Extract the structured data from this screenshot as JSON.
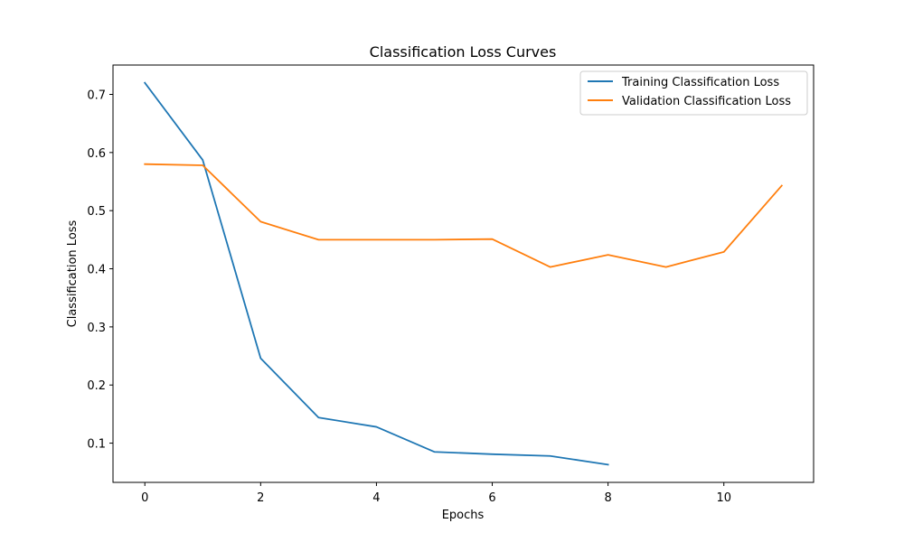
{
  "chart_data": {
    "type": "line",
    "title": "Classification Loss Curves",
    "xlabel": "Epochs",
    "ylabel": "Classification Loss",
    "xlim": [
      -0.55,
      11.55
    ],
    "ylim": [
      0.0325,
      0.7505
    ],
    "x_ticks": [
      0,
      2,
      4,
      6,
      8,
      10
    ],
    "x_tick_labels": [
      "0",
      "2",
      "4",
      "6",
      "8",
      "10"
    ],
    "y_ticks": [
      0.1,
      0.2,
      0.3,
      0.4,
      0.5,
      0.6,
      0.7
    ],
    "y_tick_labels": [
      "0.1",
      "0.2",
      "0.3",
      "0.4",
      "0.5",
      "0.6",
      "0.7"
    ],
    "grid": false,
    "legend_position": "top-right",
    "series": [
      {
        "name": "Training Classification Loss",
        "color": "#1f77b4",
        "x": [
          0,
          1,
          2,
          3,
          4,
          5,
          6,
          7,
          8
        ],
        "y": [
          0.72,
          0.587,
          0.246,
          0.144,
          0.128,
          0.085,
          0.081,
          0.078,
          0.063
        ]
      },
      {
        "name": "Validation Classification Loss",
        "color": "#ff7f0e",
        "x": [
          0,
          1,
          2,
          3,
          4,
          5,
          6,
          7,
          8,
          9,
          10,
          11
        ],
        "y": [
          0.58,
          0.578,
          0.481,
          0.45,
          0.45,
          0.45,
          0.451,
          0.403,
          0.424,
          0.403,
          0.429,
          0.543
        ]
      }
    ]
  }
}
